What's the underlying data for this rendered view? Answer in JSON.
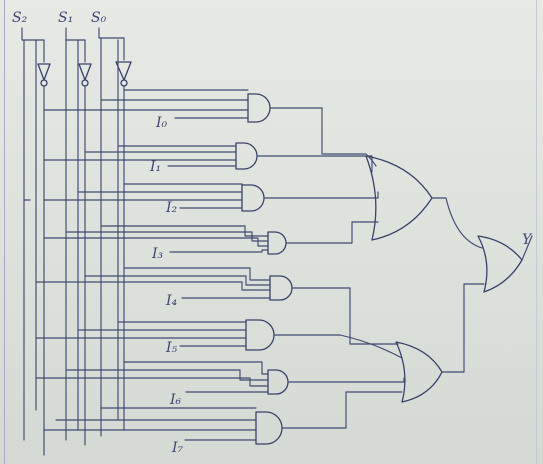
{
  "circuit": {
    "select_labels": [
      "S₂",
      "S₁",
      "S₀"
    ],
    "input_labels": [
      "I₀",
      "I₁",
      "I₂",
      "I₃",
      "I₄",
      "I₅",
      "I₆",
      "I₇"
    ],
    "output_label": "Y",
    "colors": {
      "ink": "#3f4a72",
      "paper": "#e3e6e1"
    }
  }
}
